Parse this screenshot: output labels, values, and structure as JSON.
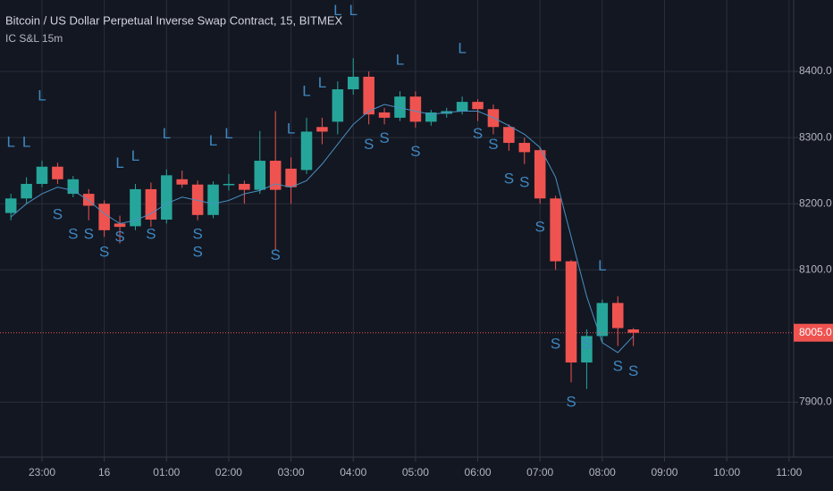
{
  "title": "Bitcoin / US Dollar Perpetual Inverse Swap Contract, 15, BITMEX",
  "subtitle": "IC S&L 15m",
  "chart_data": {
    "type": "candlestick",
    "up_color": "#26a69a",
    "down_color": "#ef5350",
    "line_color": "#4a8fc0",
    "signal_color": "#3f87c0",
    "grid": true,
    "open": [
      8186,
      8208,
      8230,
      8256,
      8215,
      8215,
      8200,
      8170,
      8166,
      8222,
      8176,
      8237,
      8229,
      8183,
      8228,
      8230,
      8221,
      8265,
      8253,
      8251,
      8316,
      8324,
      8373,
      8392,
      8338,
      8330,
      8362,
      8324,
      8336,
      8340,
      8354,
      8343,
      8316,
      8292,
      8281,
      8208,
      8113,
      7960,
      8000,
      8050,
      8010
    ],
    "high": [
      8215,
      8240,
      8265,
      8262,
      8242,
      8222,
      8205,
      8182,
      8230,
      8232,
      8252,
      8250,
      8235,
      8234,
      8245,
      8235,
      8310,
      8340,
      8270,
      8330,
      8330,
      8385,
      8420,
      8400,
      8345,
      8370,
      8370,
      8342,
      8345,
      8362,
      8358,
      8350,
      8320,
      8300,
      8285,
      8212,
      8115,
      8010,
      8055,
      8060,
      8012
    ],
    "low": [
      8175,
      8200,
      8225,
      8230,
      8210,
      8175,
      8150,
      8140,
      8160,
      8165,
      8170,
      8224,
      8175,
      8178,
      8220,
      8200,
      8215,
      8130,
      8200,
      8245,
      8290,
      8305,
      8365,
      8320,
      8320,
      8325,
      8315,
      8318,
      8330,
      8335,
      8325,
      8305,
      8280,
      8260,
      8200,
      8100,
      7930,
      7920,
      7990,
      7985,
      7985
    ],
    "close": [
      8208,
      8230,
      8256,
      8237,
      8237,
      8197,
      8160,
      8165,
      8222,
      8176,
      8243,
      8229,
      8183,
      8229,
      8230,
      8221,
      8265,
      8221,
      8225,
      8309,
      8309,
      8373,
      8392,
      8335,
      8330,
      8362,
      8324,
      8338,
      8340,
      8354,
      8343,
      8316,
      8292,
      8278,
      8208,
      8113,
      7960,
      8000,
      8050,
      8012,
      8005
    ],
    "line": [
      8180,
      8200,
      8215,
      8225,
      8220,
      8205,
      8185,
      8170,
      8175,
      8185,
      8200,
      8210,
      8205,
      8200,
      8205,
      8215,
      8220,
      8230,
      8225,
      8235,
      8260,
      8290,
      8320,
      8340,
      8350,
      8345,
      8340,
      8335,
      8338,
      8340,
      8340,
      8330,
      8318,
      8305,
      8285,
      8240,
      8150,
      8060,
      7990,
      7975,
      8000
    ],
    "signals": [
      {
        "x": 0,
        "y": 8292,
        "text": "L"
      },
      {
        "x": 1,
        "y": 8292,
        "text": "L"
      },
      {
        "x": 2,
        "y": 8362,
        "text": "L"
      },
      {
        "x": 7,
        "y": 8260,
        "text": "L"
      },
      {
        "x": 8,
        "y": 8271,
        "text": "L"
      },
      {
        "x": 10,
        "y": 8305,
        "text": "L"
      },
      {
        "x": 13,
        "y": 8294,
        "text": "L"
      },
      {
        "x": 14,
        "y": 8305,
        "text": "L"
      },
      {
        "x": 18,
        "y": 8312,
        "text": "L"
      },
      {
        "x": 19,
        "y": 8369,
        "text": "L"
      },
      {
        "x": 20,
        "y": 8382,
        "text": "L"
      },
      {
        "x": 21,
        "y": 8491,
        "text": "L"
      },
      {
        "x": 22,
        "y": 8491,
        "text": "L"
      },
      {
        "x": 25,
        "y": 8416,
        "text": "L"
      },
      {
        "x": 29,
        "y": 8434,
        "text": "L"
      },
      {
        "x": 38,
        "y": 8105,
        "text": "L"
      },
      {
        "x": 3,
        "y": 8183,
        "text": "S"
      },
      {
        "x": 4,
        "y": 8153,
        "text": "S"
      },
      {
        "x": 5,
        "y": 8153,
        "text": "S"
      },
      {
        "x": 6,
        "y": 8126,
        "text": "S"
      },
      {
        "x": 7,
        "y": 8149,
        "text": "S"
      },
      {
        "x": 9,
        "y": 8153,
        "text": "S"
      },
      {
        "x": 12,
        "y": 8153,
        "text": "S"
      },
      {
        "x": 12,
        "y": 8126,
        "text": "S"
      },
      {
        "x": 17,
        "y": 8121,
        "text": "S"
      },
      {
        "x": 23,
        "y": 8289,
        "text": "S"
      },
      {
        "x": 24,
        "y": 8298,
        "text": "S"
      },
      {
        "x": 26,
        "y": 8278,
        "text": "S"
      },
      {
        "x": 30,
        "y": 8305,
        "text": "S"
      },
      {
        "x": 31,
        "y": 8289,
        "text": "S"
      },
      {
        "x": 32,
        "y": 8237,
        "text": "S"
      },
      {
        "x": 33,
        "y": 8231,
        "text": "S"
      },
      {
        "x": 34,
        "y": 8164,
        "text": "S"
      },
      {
        "x": 35,
        "y": 7987,
        "text": "S"
      },
      {
        "x": 36,
        "y": 7899,
        "text": "S"
      },
      {
        "x": 37,
        "y": 7987,
        "text": "S"
      },
      {
        "x": 39,
        "y": 7953,
        "text": "S"
      },
      {
        "x": 40,
        "y": 7946,
        "text": "S"
      }
    ],
    "last_price": {
      "value": 8005,
      "label": "8005.0"
    },
    "ylim": [
      7817,
      8508
    ],
    "yticks": [
      {
        "value": 7900,
        "label": "7900.0"
      },
      {
        "value": 8100,
        "label": "8100.0"
      },
      {
        "value": 8200,
        "label": "8200.0"
      },
      {
        "value": 8300,
        "label": "8300.0"
      },
      {
        "value": 8400,
        "label": "8400.0"
      }
    ],
    "xlim": [
      -0.7,
      50.3
    ],
    "xticks": [
      {
        "value": 2,
        "label": "23:00"
      },
      {
        "value": 6,
        "label": "16"
      },
      {
        "value": 10,
        "label": "01:00"
      },
      {
        "value": 14,
        "label": "02:00"
      },
      {
        "value": 18,
        "label": "03:00"
      },
      {
        "value": 22,
        "label": "04:00"
      },
      {
        "value": 26,
        "label": "05:00"
      },
      {
        "value": 30,
        "label": "06:00"
      },
      {
        "value": 34,
        "label": "07:00"
      },
      {
        "value": 38,
        "label": "08:00"
      },
      {
        "value": 42,
        "label": "09:00"
      },
      {
        "value": 46,
        "label": "10:00"
      },
      {
        "value": 50,
        "label": "11:00"
      }
    ]
  }
}
